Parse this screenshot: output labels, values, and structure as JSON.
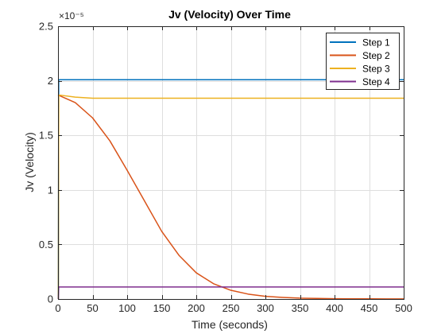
{
  "chart_data": {
    "type": "line",
    "title": "Jv (Velocity) Over Time",
    "xlabel": "Time (seconds)",
    "ylabel": "Jv (Velocity)",
    "xlim": [
      0,
      500
    ],
    "ylim": [
      0,
      2.5e-05
    ],
    "x_ticks": [
      0,
      50,
      100,
      150,
      200,
      250,
      300,
      350,
      400,
      450,
      500
    ],
    "x_tick_labels": [
      "0",
      "50",
      "100",
      "150",
      "200",
      "250",
      "300",
      "350",
      "400",
      "450",
      "500"
    ],
    "y_ticks": [
      0,
      0.5,
      1,
      1.5,
      2,
      2.5
    ],
    "y_tick_labels": [
      "0",
      "0.5",
      "1",
      "1.5",
      "2",
      "2.5"
    ],
    "y_exponent_label": "×10⁻⁵",
    "y_multiplier": 1e-05,
    "grid": true,
    "legend_position": "top-right",
    "series": [
      {
        "name": "Step 1",
        "color": "#0072BD",
        "points": [
          [
            0,
            0
          ],
          [
            0.5,
            0
          ],
          [
            1,
            2.01e-05
          ],
          [
            500,
            2.01e-05
          ]
        ]
      },
      {
        "name": "Step 2",
        "color": "#D95319",
        "points": [
          [
            0,
            1.87e-05
          ],
          [
            25,
            1.8e-05
          ],
          [
            50,
            1.66e-05
          ],
          [
            75,
            1.45e-05
          ],
          [
            100,
            1.18e-05
          ],
          [
            125,
            9e-06
          ],
          [
            150,
            6.2e-06
          ],
          [
            175,
            4e-06
          ],
          [
            200,
            2.4e-06
          ],
          [
            225,
            1.4e-06
          ],
          [
            250,
            8e-07
          ],
          [
            275,
            4.5e-07
          ],
          [
            300,
            2.5e-07
          ],
          [
            325,
            1.5e-07
          ],
          [
            350,
            8e-08
          ],
          [
            375,
            5e-08
          ],
          [
            400,
            3e-08
          ],
          [
            425,
            2e-08
          ],
          [
            450,
            1.5e-08
          ],
          [
            475,
            1e-08
          ],
          [
            500,
            8e-09
          ]
        ]
      },
      {
        "name": "Step 3",
        "color": "#EDB120",
        "points": [
          [
            0,
            0
          ],
          [
            0.5,
            0
          ],
          [
            1,
            1.87e-05
          ],
          [
            25,
            1.85e-05
          ],
          [
            50,
            1.84e-05
          ],
          [
            100,
            1.84e-05
          ],
          [
            500,
            1.84e-05
          ]
        ]
      },
      {
        "name": "Step 4",
        "color": "#7E2F8E",
        "points": [
          [
            0,
            0
          ],
          [
            0.5,
            0
          ],
          [
            1,
            1.1e-06
          ],
          [
            500,
            1.1e-06
          ]
        ]
      }
    ]
  }
}
